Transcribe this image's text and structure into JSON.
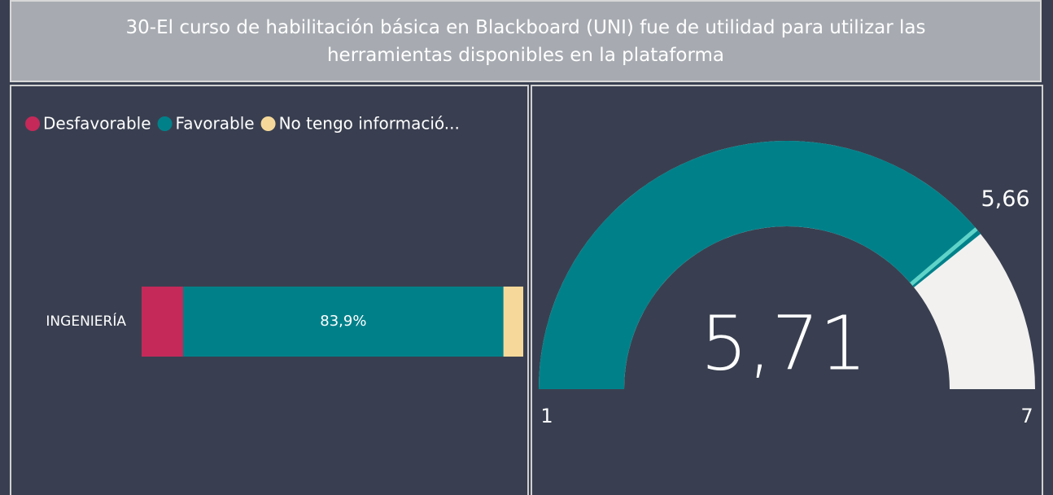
{
  "title": "30-El curso de habilitación básica en Blackboard (UNI) fue de utilidad para utilizar las herramientas disponibles en la plataforma",
  "chart_data": [
    {
      "type": "stacked-bar-100",
      "orientation": "horizontal",
      "categories": [
        "INGENIERÍA"
      ],
      "xlim": [
        0,
        100
      ],
      "legend": "top-left",
      "series": [
        {
          "name": "Desfavorable",
          "color": "#c4295a",
          "values": [
            10.9
          ]
        },
        {
          "name": "Favorable",
          "color": "#00818a",
          "values": [
            83.9
          ],
          "value_labels": [
            "83,9%"
          ]
        },
        {
          "name": "No tengo informació...",
          "color": "#f6d99a",
          "values": [
            5.2
          ]
        }
      ]
    },
    {
      "type": "gauge",
      "min": 1,
      "max": 7,
      "value": 5.71,
      "value_label": "5,71",
      "target": 5.66,
      "target_label": "5,66",
      "color": "#00818a",
      "track_color": "#f2f1f0",
      "target_color": "#5fd3c8"
    }
  ]
}
